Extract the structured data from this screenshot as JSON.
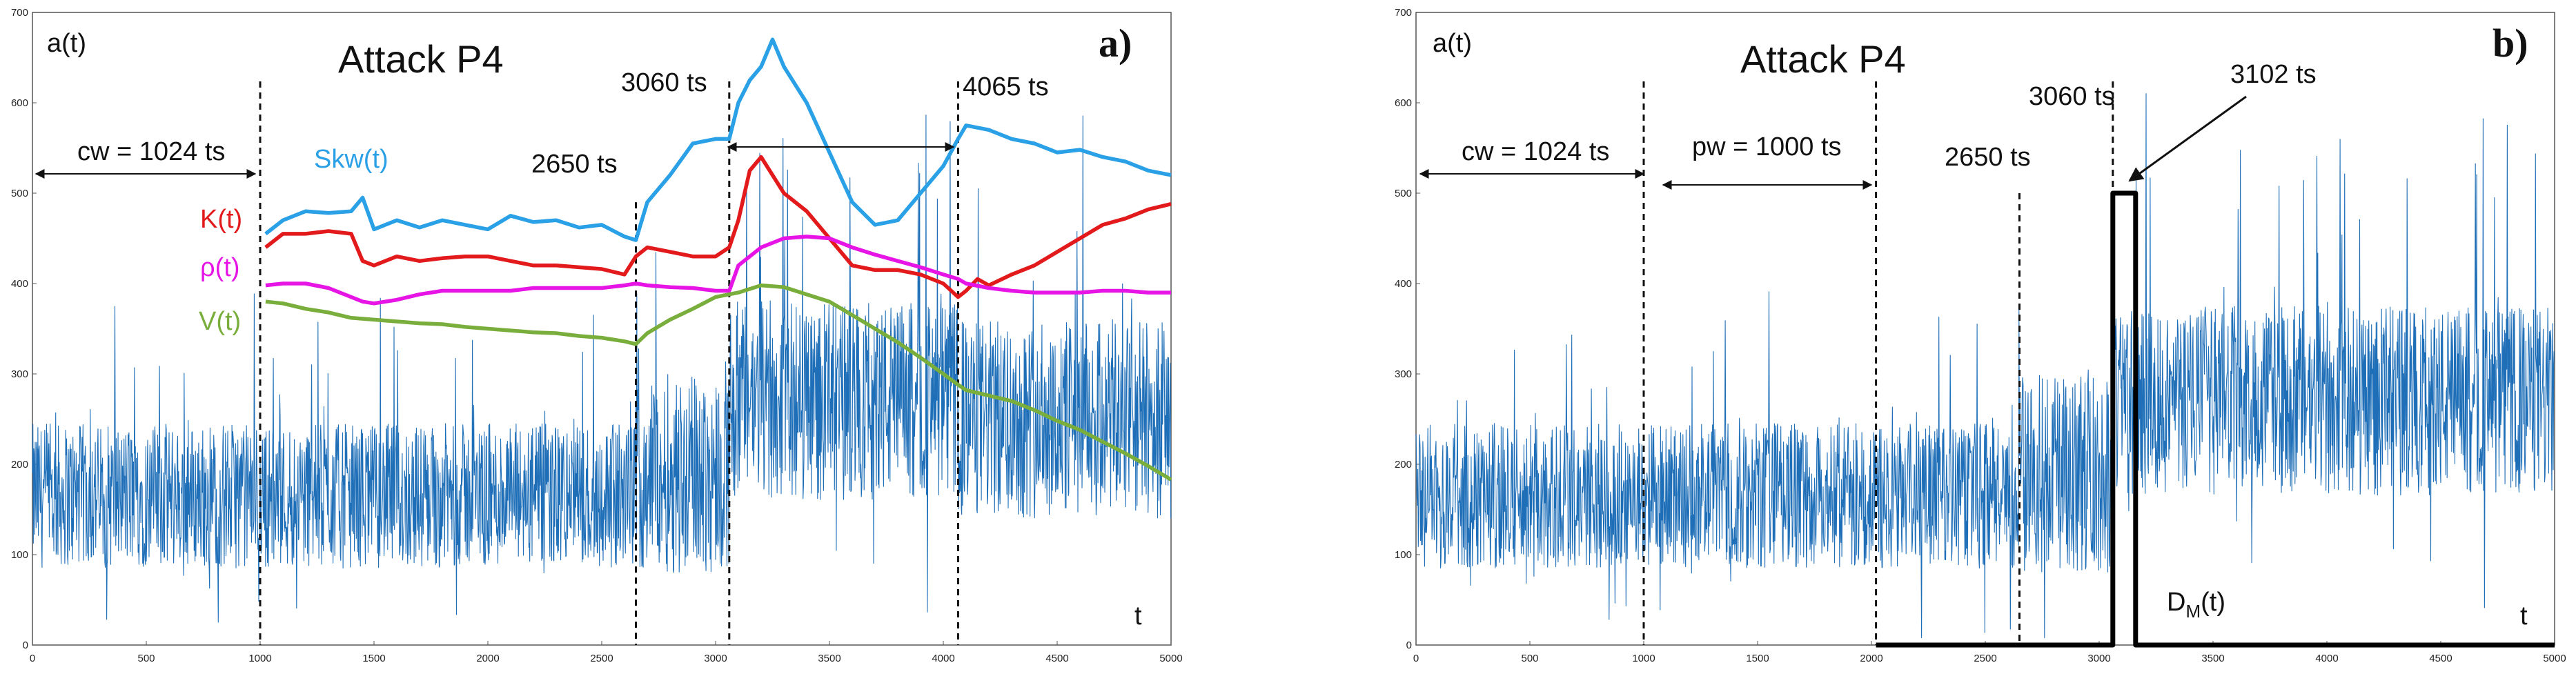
{
  "chart_data": [
    {
      "type": "line",
      "panel_label": "a)",
      "title": "Attack  P4",
      "ylabel": "a(t)",
      "xlabel": "t",
      "xlim": [
        0,
        5000
      ],
      "ylim": [
        0,
        700
      ],
      "xticks": [
        "0",
        "500",
        "1000",
        "1500",
        "2000",
        "2500",
        "3000",
        "3500",
        "4000",
        "4500",
        "5000"
      ],
      "yticks": [
        "0",
        "100",
        "200",
        "300",
        "400",
        "500",
        "600",
        "700"
      ],
      "signal": {
        "name": "a(t)",
        "color": "#1f6fb8",
        "regimes": [
          {
            "start": 0,
            "end": 2650,
            "mean": 165,
            "amp": 80,
            "spike": 120
          },
          {
            "start": 2650,
            "end": 3060,
            "mean": 190,
            "amp": 110,
            "spike": 150
          },
          {
            "start": 3060,
            "end": 4065,
            "mean": 270,
            "amp": 110,
            "spike": 170
          },
          {
            "start": 4065,
            "end": 5000,
            "mean": 250,
            "amp": 110,
            "spike": 150
          }
        ]
      },
      "series": [
        {
          "name": "Skw(t)",
          "label": "Skw(t)",
          "color": "#2aa0e6",
          "x": [
            1024,
            1100,
            1200,
            1300,
            1400,
            1450,
            1500,
            1600,
            1700,
            1800,
            1900,
            2000,
            2100,
            2200,
            2300,
            2400,
            2500,
            2600,
            2650,
            2700,
            2800,
            2900,
            3000,
            3060,
            3100,
            3150,
            3200,
            3250,
            3300,
            3350,
            3400,
            3500,
            3600,
            3700,
            3800,
            3900,
            4000,
            4065,
            4100,
            4200,
            4300,
            4400,
            4500,
            4600,
            4700,
            4800,
            4900,
            5000
          ],
          "y": [
            455,
            470,
            480,
            478,
            480,
            495,
            460,
            470,
            462,
            470,
            465,
            460,
            475,
            468,
            470,
            462,
            465,
            452,
            448,
            490,
            520,
            555,
            560,
            560,
            600,
            625,
            640,
            670,
            640,
            620,
            600,
            545,
            490,
            465,
            470,
            500,
            530,
            560,
            575,
            570,
            560,
            555,
            545,
            548,
            540,
            535,
            525,
            520
          ]
        },
        {
          "name": "K(t)",
          "label": "K(t)",
          "color": "#e31a1c",
          "x": [
            1024,
            1100,
            1200,
            1300,
            1400,
            1450,
            1500,
            1600,
            1700,
            1800,
            1900,
            2000,
            2100,
            2200,
            2300,
            2400,
            2500,
            2600,
            2650,
            2700,
            2800,
            2900,
            3000,
            3060,
            3100,
            3150,
            3200,
            3250,
            3300,
            3400,
            3500,
            3600,
            3700,
            3800,
            3900,
            4000,
            4065,
            4100,
            4150,
            4200,
            4300,
            4400,
            4500,
            4600,
            4700,
            4800,
            4900,
            5000
          ],
          "y": [
            440,
            455,
            455,
            458,
            455,
            425,
            420,
            430,
            425,
            428,
            430,
            430,
            425,
            420,
            420,
            418,
            416,
            410,
            430,
            440,
            435,
            430,
            430,
            440,
            470,
            525,
            540,
            520,
            500,
            480,
            450,
            420,
            415,
            415,
            410,
            400,
            385,
            392,
            405,
            398,
            410,
            420,
            435,
            450,
            465,
            472,
            482,
            488
          ]
        },
        {
          "name": "rho(t)",
          "label": "ρ(t)",
          "color": "#e615e6",
          "x": [
            1024,
            1100,
            1200,
            1300,
            1400,
            1450,
            1500,
            1600,
            1700,
            1800,
            1900,
            2000,
            2100,
            2200,
            2300,
            2400,
            2500,
            2600,
            2650,
            2700,
            2800,
            2900,
            3000,
            3060,
            3100,
            3200,
            3300,
            3400,
            3500,
            3600,
            3700,
            3800,
            3900,
            4000,
            4065,
            4100,
            4200,
            4300,
            4400,
            4500,
            4600,
            4700,
            4800,
            4900,
            5000
          ],
          "y": [
            398,
            400,
            400,
            395,
            385,
            380,
            378,
            382,
            388,
            392,
            392,
            392,
            392,
            395,
            395,
            395,
            395,
            398,
            400,
            398,
            396,
            395,
            392,
            392,
            420,
            440,
            450,
            452,
            450,
            440,
            432,
            425,
            418,
            410,
            405,
            400,
            395,
            392,
            390,
            390,
            390,
            392,
            392,
            390,
            390
          ]
        },
        {
          "name": "V(t)",
          "label": "V(t)",
          "color": "#79ae3c",
          "x": [
            1024,
            1100,
            1200,
            1300,
            1400,
            1500,
            1600,
            1700,
            1800,
            1900,
            2000,
            2100,
            2200,
            2300,
            2400,
            2500,
            2600,
            2650,
            2700,
            2800,
            2900,
            3000,
            3100,
            3200,
            3300,
            3400,
            3500,
            3600,
            3700,
            3800,
            3900,
            4000,
            4065,
            4100,
            4200,
            4300,
            4400,
            4500,
            4600,
            4700,
            4800,
            4900,
            5000
          ],
          "y": [
            380,
            378,
            372,
            368,
            362,
            360,
            358,
            356,
            355,
            352,
            350,
            348,
            346,
            345,
            342,
            340,
            336,
            333,
            345,
            360,
            372,
            385,
            390,
            398,
            396,
            388,
            380,
            365,
            350,
            335,
            318,
            300,
            288,
            282,
            276,
            270,
            260,
            248,
            238,
            225,
            212,
            198,
            183
          ]
        }
      ],
      "vlines": [
        1000,
        2650,
        3060,
        4065
      ],
      "annotations": {
        "cw": "cw = 1024 ts",
        "t2650": "2650 ts",
        "t3060": "3060 ts",
        "t4065": "4065 ts"
      }
    },
    {
      "type": "line",
      "panel_label": "b)",
      "title": "Attack  P4",
      "ylabel": "a(t)",
      "xlabel": "t",
      "xlim": [
        0,
        5000
      ],
      "ylim": [
        0,
        700
      ],
      "xticks": [
        "0",
        "500",
        "1000",
        "1500",
        "2000",
        "2500",
        "3000",
        "3500",
        "4000",
        "4500",
        "5000"
      ],
      "yticks": [
        "0",
        "100",
        "200",
        "300",
        "400",
        "500",
        "600",
        "700"
      ],
      "signal": {
        "name": "a(t)",
        "color": "#1f6fb8",
        "regimes": [
          {
            "start": 0,
            "end": 2650,
            "mean": 165,
            "amp": 80,
            "spike": 120
          },
          {
            "start": 2650,
            "end": 3060,
            "mean": 190,
            "amp": 110,
            "spike": 150
          },
          {
            "start": 3060,
            "end": 5000,
            "mean": 270,
            "amp": 105,
            "spike": 170
          }
        ]
      },
      "series": [
        {
          "name": "DM(t)",
          "label": "D_M(t)",
          "color": "#000000",
          "x": [
            2020,
            3060,
            3060,
            3102,
            3102,
            3160,
            3160,
            5000
          ],
          "y": [
            0,
            0,
            500,
            500,
            500,
            500,
            0,
            0
          ]
        }
      ],
      "vlines": [
        1000,
        2020,
        2650,
        3060
      ],
      "annotations": {
        "cw": "cw = 1024 ts",
        "pw": "pw = 1000 ts",
        "t2650": "2650 ts",
        "t3060": "3060 ts",
        "t3102": "3102 ts",
        "dm_main": "D",
        "dm_sub": "M",
        "dm_tail": "(t)"
      }
    }
  ]
}
